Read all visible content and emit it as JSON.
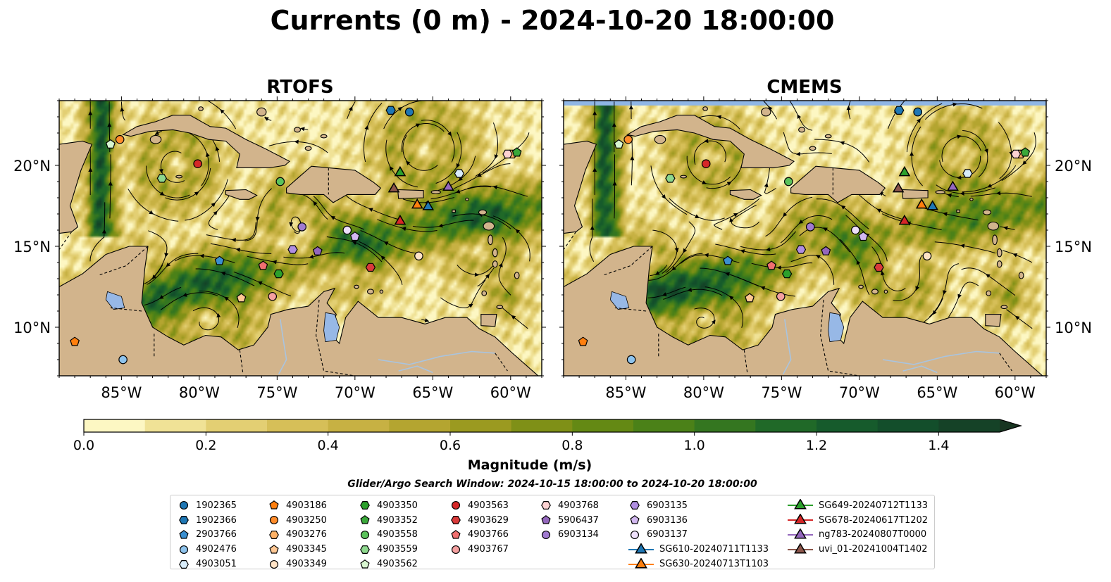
{
  "title": "Currents (0 m) - 2024-10-20 18:00:00",
  "panels": [
    {
      "title": "RTOFS"
    },
    {
      "title": "CMEMS"
    }
  ],
  "colors": {
    "land": "#d2b48c",
    "no_data": "#8fb6e6",
    "lake": "#97b8e6",
    "river": "#a9c4df",
    "streamline": "#000000"
  },
  "colorbar": {
    "label": "Magnitude (m/s)",
    "min": 0.0,
    "max": 1.5,
    "step": 0.1,
    "ticks": [
      "0.0",
      "0.2",
      "0.4",
      "0.6",
      "0.8",
      "1.0",
      "1.2",
      "1.4"
    ],
    "extend": "max",
    "colors": [
      "#fdf7c3",
      "#f0e296",
      "#e3cf73",
      "#d6bf58",
      "#c7b143",
      "#b4a530",
      "#9b9a20",
      "#7f9017",
      "#648914",
      "#4b8118",
      "#347620",
      "#206928",
      "#165b2c",
      "#134e2b",
      "#154227",
      "#183521"
    ]
  },
  "search_window": "Glider/Argo Search Window: 2024-10-15 18:00:00 to 2024-10-20 18:00:00",
  "chart_data": {
    "type": "map",
    "xlim": [
      -89,
      -58
    ],
    "ylim": [
      7,
      24
    ],
    "x_ticks": [
      {
        "value": -85,
        "label": "85°W"
      },
      {
        "value": -80,
        "label": "80°W"
      },
      {
        "value": -75,
        "label": "75°W"
      },
      {
        "value": -70,
        "label": "70°W"
      },
      {
        "value": -65,
        "label": "65°W"
      },
      {
        "value": -60,
        "label": "60°W"
      }
    ],
    "y_ticks": [
      {
        "value": 10,
        "label": "10°N"
      },
      {
        "value": 15,
        "label": "15°N"
      },
      {
        "value": 20,
        "label": "20°N"
      }
    ],
    "platforms": [
      {
        "name": "1902365",
        "marker": "circle",
        "color": "#1f77b4",
        "lon": -66.5,
        "lat": 23.3
      },
      {
        "name": "1902366",
        "marker": "hexagon",
        "color": "#1f77b4",
        "lon": -67.7,
        "lat": 23.4
      },
      {
        "name": "2903766",
        "marker": "pentagon",
        "color": "#3a8fd0",
        "lon": -78.7,
        "lat": 14.1
      },
      {
        "name": "4902476",
        "marker": "circle",
        "color": "#8ec3ec",
        "lon": -84.9,
        "lat": 8.0
      },
      {
        "name": "4903051",
        "marker": "hexagon",
        "color": "#d8ecfa",
        "lon": -63.3,
        "lat": 19.5
      },
      {
        "name": "4903186",
        "marker": "pentagon",
        "color": "#ff7f0e",
        "lon": -88.0,
        "lat": 9.1
      },
      {
        "name": "4903250",
        "marker": "circle",
        "color": "#ff8c2a",
        "lon": -85.1,
        "lat": 21.6
      },
      {
        "name": "4903276",
        "marker": "hexagon",
        "color": "#ffb266",
        "lon": -59.9,
        "lat": 20.7
      },
      {
        "name": "4903345",
        "marker": "pentagon",
        "color": "#ffc894",
        "lon": -77.3,
        "lat": 11.8
      },
      {
        "name": "4903349",
        "marker": "circle",
        "color": "#ffe3c6",
        "lon": -65.9,
        "lat": 14.4
      },
      {
        "name": "4903350",
        "marker": "hexagon",
        "color": "#2ca02c",
        "lon": -74.9,
        "lat": 13.3
      },
      {
        "name": "4903352",
        "marker": "pentagon",
        "color": "#3aa83a",
        "lon": -59.6,
        "lat": 20.8
      },
      {
        "name": "4903558",
        "marker": "circle",
        "color": "#5bc25b",
        "lon": -74.8,
        "lat": 19.0
      },
      {
        "name": "4903559",
        "marker": "hexagon",
        "color": "#8ed88e",
        "lon": -82.4,
        "lat": 19.2
      },
      {
        "name": "4903562",
        "marker": "pentagon",
        "color": "#d8f6d0",
        "lon": -85.7,
        "lat": 21.3
      },
      {
        "name": "4903563",
        "marker": "circle",
        "color": "#d62728",
        "lon": -80.1,
        "lat": 20.1
      },
      {
        "name": "4903629",
        "marker": "hexagon",
        "color": "#d93a3a",
        "lon": -69.0,
        "lat": 13.7
      },
      {
        "name": "4903766",
        "marker": "pentagon",
        "color": "#f07070",
        "lon": -75.9,
        "lat": 13.8
      },
      {
        "name": "4903767",
        "marker": "circle",
        "color": "#f5a0a0",
        "lon": -75.3,
        "lat": 11.9
      },
      {
        "name": "4903768",
        "marker": "hexagon",
        "color": "#fcd2d2",
        "lon": -60.2,
        "lat": 20.7
      },
      {
        "name": "5906437",
        "marker": "pentagon",
        "color": "#9467bd",
        "lon": -72.4,
        "lat": 14.7
      },
      {
        "name": "6903134",
        "marker": "circle",
        "color": "#a07ad0",
        "lon": -73.4,
        "lat": 16.2
      },
      {
        "name": "6903135",
        "marker": "hexagon",
        "color": "#b08ee0",
        "lon": -74.0,
        "lat": 14.8
      },
      {
        "name": "6903136",
        "marker": "pentagon",
        "color": "#d2b8f0",
        "lon": -70.0,
        "lat": 15.6
      },
      {
        "name": "6903137",
        "marker": "circle",
        "color": "#eee0fb",
        "lon": -70.5,
        "lat": 16.0
      },
      {
        "name": "SG610-20240711T1133",
        "marker": "triangle",
        "color": "#1f77b4",
        "lon": -65.3,
        "lat": 17.5,
        "line": true
      },
      {
        "name": "SG630-20240713T1103",
        "marker": "triangle",
        "color": "#ff7f0e",
        "lon": -66.0,
        "lat": 17.6,
        "line": true
      },
      {
        "name": "SG649-20240712T1133",
        "marker": "triangle",
        "color": "#2ca02c",
        "lon": -67.1,
        "lat": 19.6,
        "line": true
      },
      {
        "name": "SG678-20240617T1202",
        "marker": "triangle",
        "color": "#d62728",
        "lon": -67.1,
        "lat": 16.6,
        "line": true
      },
      {
        "name": "ng783-20240807T0000",
        "marker": "triangle",
        "color": "#9467bd",
        "lon": -64.0,
        "lat": 18.7,
        "line": true
      },
      {
        "name": "uvi_01-20241004T1402",
        "marker": "triangle",
        "color": "#8c564b",
        "lon": -67.5,
        "lat": 18.6,
        "line": true
      }
    ]
  }
}
